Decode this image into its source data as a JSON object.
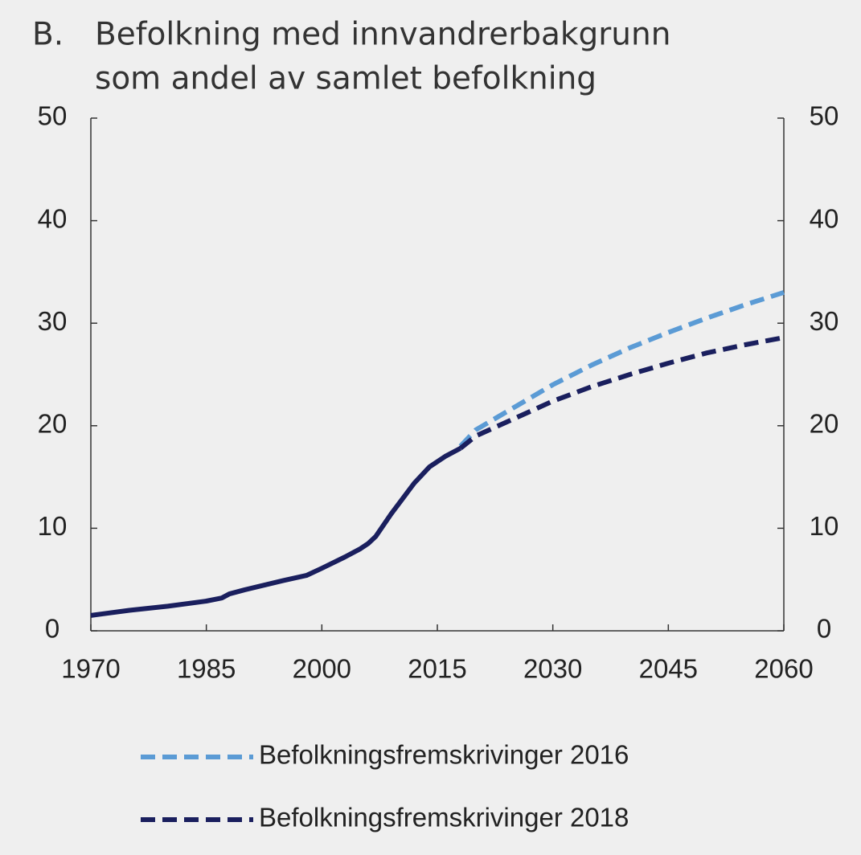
{
  "chart_data": {
    "type": "line",
    "panel_label": "B.",
    "title": [
      "Befolkning med innvandrerbakgrunn",
      "som andel av samlet befolkning"
    ],
    "xlim": [
      1970,
      2060
    ],
    "xticks": [
      1970,
      1985,
      2000,
      2015,
      2030,
      2045,
      2060
    ],
    "ylim": [
      0,
      50
    ],
    "yticks": [
      0,
      10,
      20,
      30,
      40,
      50
    ],
    "y2lim": [
      0,
      50
    ],
    "y2ticks": [
      0,
      10,
      20,
      30,
      40,
      50
    ],
    "series": [
      {
        "color": "#1a1f5e",
        "dashed": false,
        "x": [
          1970,
          1975,
          1980,
          1985,
          1987,
          1988,
          1990,
          1995,
          1998,
          2000,
          2003,
          2005,
          2006,
          2007,
          2008,
          2009,
          2010,
          2012,
          2014,
          2016,
          2018
        ],
        "values": [
          1.5,
          2.0,
          2.4,
          2.9,
          3.2,
          3.6,
          4.0,
          4.9,
          5.4,
          6.1,
          7.2,
          8.0,
          8.5,
          9.2,
          10.3,
          11.4,
          12.4,
          14.4,
          16.0,
          17.0,
          17.8
        ]
      },
      {
        "name": "Befolkningsfremskrivinger 2016",
        "color": "#5b9bd5",
        "dashed": true,
        "x": [
          2018,
          2020,
          2025,
          2030,
          2035,
          2040,
          2045,
          2050,
          2055,
          2060
        ],
        "values": [
          18.0,
          19.6,
          21.8,
          24.0,
          25.9,
          27.6,
          29.1,
          30.5,
          31.8,
          33.0
        ]
      },
      {
        "name": "Befolkningsfremskrivinger 2018",
        "color": "#1a1f5e",
        "dashed": true,
        "x": [
          2018,
          2020,
          2025,
          2030,
          2035,
          2040,
          2045,
          2050,
          2055,
          2060
        ],
        "values": [
          17.8,
          19.0,
          20.7,
          22.4,
          23.8,
          25.0,
          26.1,
          27.1,
          27.9,
          28.6
        ]
      }
    ]
  }
}
